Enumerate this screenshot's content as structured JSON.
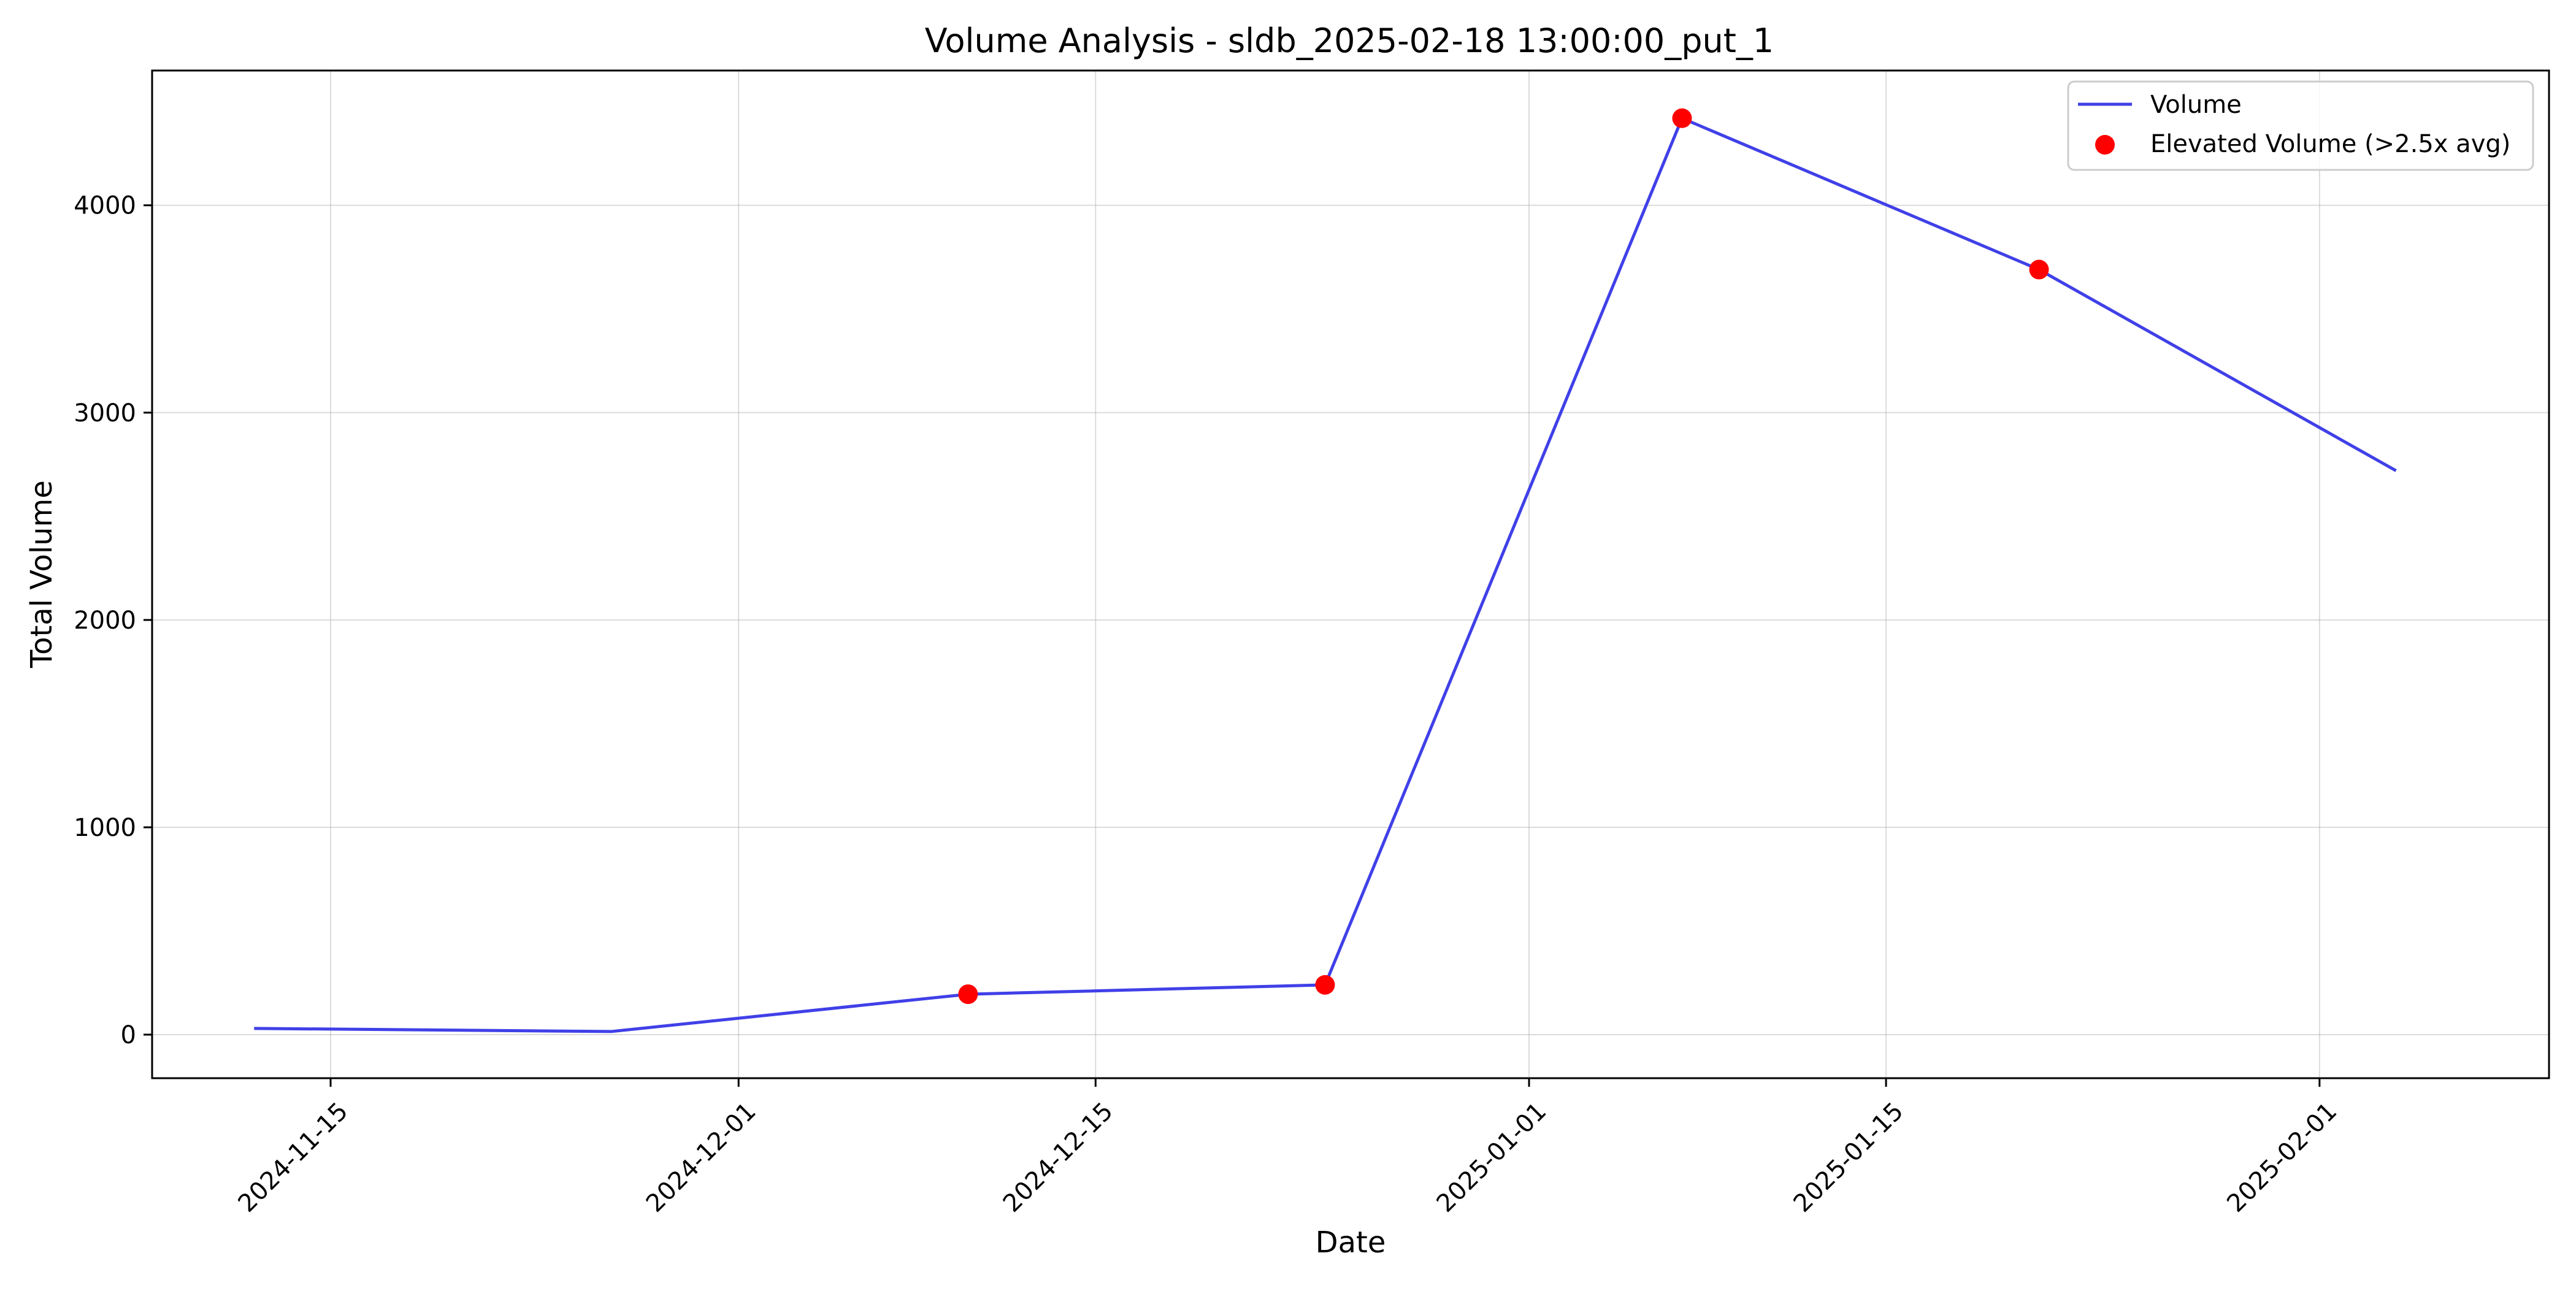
{
  "chart_data": {
    "type": "line",
    "title": "Volume Analysis - sldb_2025-02-18 13:00:00_put_1",
    "xlabel": "Date",
    "ylabel": "Total Volume",
    "x_axis_type": "date",
    "xlim": [
      "2024-11-08",
      "2025-02-10"
    ],
    "ylim": [
      -210,
      4650
    ],
    "x_ticks": [
      "2024-11-15",
      "2024-12-01",
      "2024-12-15",
      "2025-01-01",
      "2025-01-15",
      "2025-02-01"
    ],
    "y_ticks": [
      0,
      1000,
      2000,
      3000,
      4000
    ],
    "grid": true,
    "legend_position": "top-right",
    "series": [
      {
        "name": "Volume",
        "kind": "line",
        "color": "#4040e8",
        "x": [
          "2024-11-12",
          "2024-11-26",
          "2024-12-10",
          "2024-12-24",
          "2025-01-07",
          "2025-01-21",
          "2025-02-04"
        ],
        "y": [
          30,
          15,
          195,
          240,
          4420,
          3690,
          2720
        ]
      },
      {
        "name": "Elevated Volume (>2.5x avg)",
        "kind": "scatter",
        "color": "#ff0000",
        "x": [
          "2024-12-10",
          "2024-12-24",
          "2025-01-07",
          "2025-01-21"
        ],
        "y": [
          195,
          240,
          4420,
          3690
        ]
      }
    ]
  }
}
